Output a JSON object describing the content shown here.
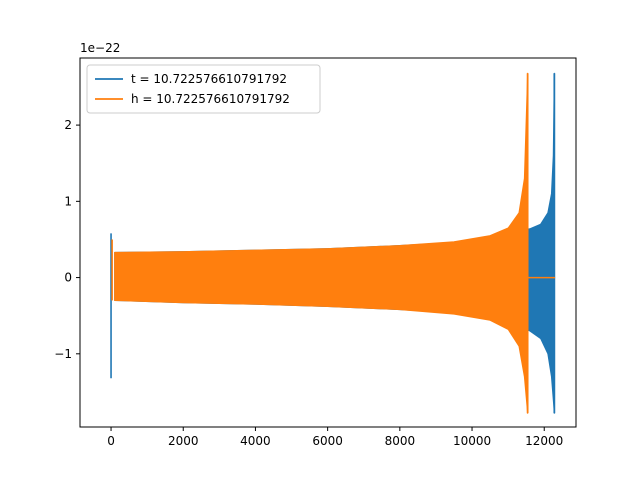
{
  "chart_data": {
    "type": "line",
    "offset_text": "1e−22",
    "xlim": [
      -860,
      12880
    ],
    "ylim": [
      -1.96,
      2.88
    ],
    "x_ticks": [
      {
        "value": 0,
        "label": "0"
      },
      {
        "value": 2000,
        "label": "2000"
      },
      {
        "value": 4000,
        "label": "4000"
      },
      {
        "value": 6000,
        "label": "6000"
      },
      {
        "value": 8000,
        "label": "8000"
      },
      {
        "value": 10000,
        "label": "10000"
      },
      {
        "value": 12000,
        "label": "12000"
      }
    ],
    "y_ticks": [
      {
        "value": 2,
        "label": "2"
      },
      {
        "value": 1,
        "label": "1"
      },
      {
        "value": 0,
        "label": "0"
      },
      {
        "value": -1,
        "label": "−1"
      }
    ],
    "legend_position": "top-left",
    "series": [
      {
        "name": "t = 10.722576610791792",
        "color": "#1f77b4",
        "spike_start": {
          "x": 0,
          "max": 0.58,
          "min": -1.32
        },
        "envelope": [
          {
            "x": 100,
            "upper": 0.33,
            "lower": -0.3
          },
          {
            "x": 2000,
            "upper": 0.34,
            "lower": -0.33
          },
          {
            "x": 4000,
            "upper": 0.36,
            "lower": -0.35
          },
          {
            "x": 6000,
            "upper": 0.38,
            "lower": -0.38
          },
          {
            "x": 8000,
            "upper": 0.42,
            "lower": -0.42
          },
          {
            "x": 9500,
            "upper": 0.46,
            "lower": -0.46
          },
          {
            "x": 10500,
            "upper": 0.52,
            "lower": -0.52
          },
          {
            "x": 11000,
            "upper": 0.58,
            "lower": -0.6
          },
          {
            "x": 11400,
            "upper": 0.62,
            "lower": -0.66
          },
          {
            "x": 11600,
            "upper": 0.64,
            "lower": -0.7
          },
          {
            "x": 11900,
            "upper": 0.7,
            "lower": -0.8
          },
          {
            "x": 12100,
            "upper": 0.85,
            "lower": -1.0
          },
          {
            "x": 12200,
            "upper": 1.1,
            "lower": -1.3
          },
          {
            "x": 12250,
            "upper": 1.6,
            "lower": -1.6
          }
        ],
        "spike_end": {
          "x": 12280,
          "max": 2.68,
          "min": -1.78
        },
        "tail": {
          "x_start": 12300,
          "x_end": 12300,
          "value": 0
        }
      },
      {
        "name": "h = 10.722576610791792",
        "color": "#ff7f0e",
        "spike_start": {
          "x": 30,
          "max": 0.5,
          "min": -0.3
        },
        "envelope": [
          {
            "x": 100,
            "upper": 0.33,
            "lower": -0.3
          },
          {
            "x": 2000,
            "upper": 0.34,
            "lower": -0.33
          },
          {
            "x": 4000,
            "upper": 0.36,
            "lower": -0.35
          },
          {
            "x": 6000,
            "upper": 0.38,
            "lower": -0.38
          },
          {
            "x": 8000,
            "upper": 0.42,
            "lower": -0.42
          },
          {
            "x": 9500,
            "upper": 0.47,
            "lower": -0.48
          },
          {
            "x": 10500,
            "upper": 0.55,
            "lower": -0.56
          },
          {
            "x": 11000,
            "upper": 0.65,
            "lower": -0.68
          },
          {
            "x": 11300,
            "upper": 0.85,
            "lower": -0.9
          },
          {
            "x": 11450,
            "upper": 1.3,
            "lower": -1.3
          }
        ],
        "spike_end": {
          "x": 11540,
          "max": 2.68,
          "min": -1.78
        },
        "tail": {
          "x_start": 11560,
          "x_end": 12300,
          "value": 0
        }
      }
    ]
  }
}
